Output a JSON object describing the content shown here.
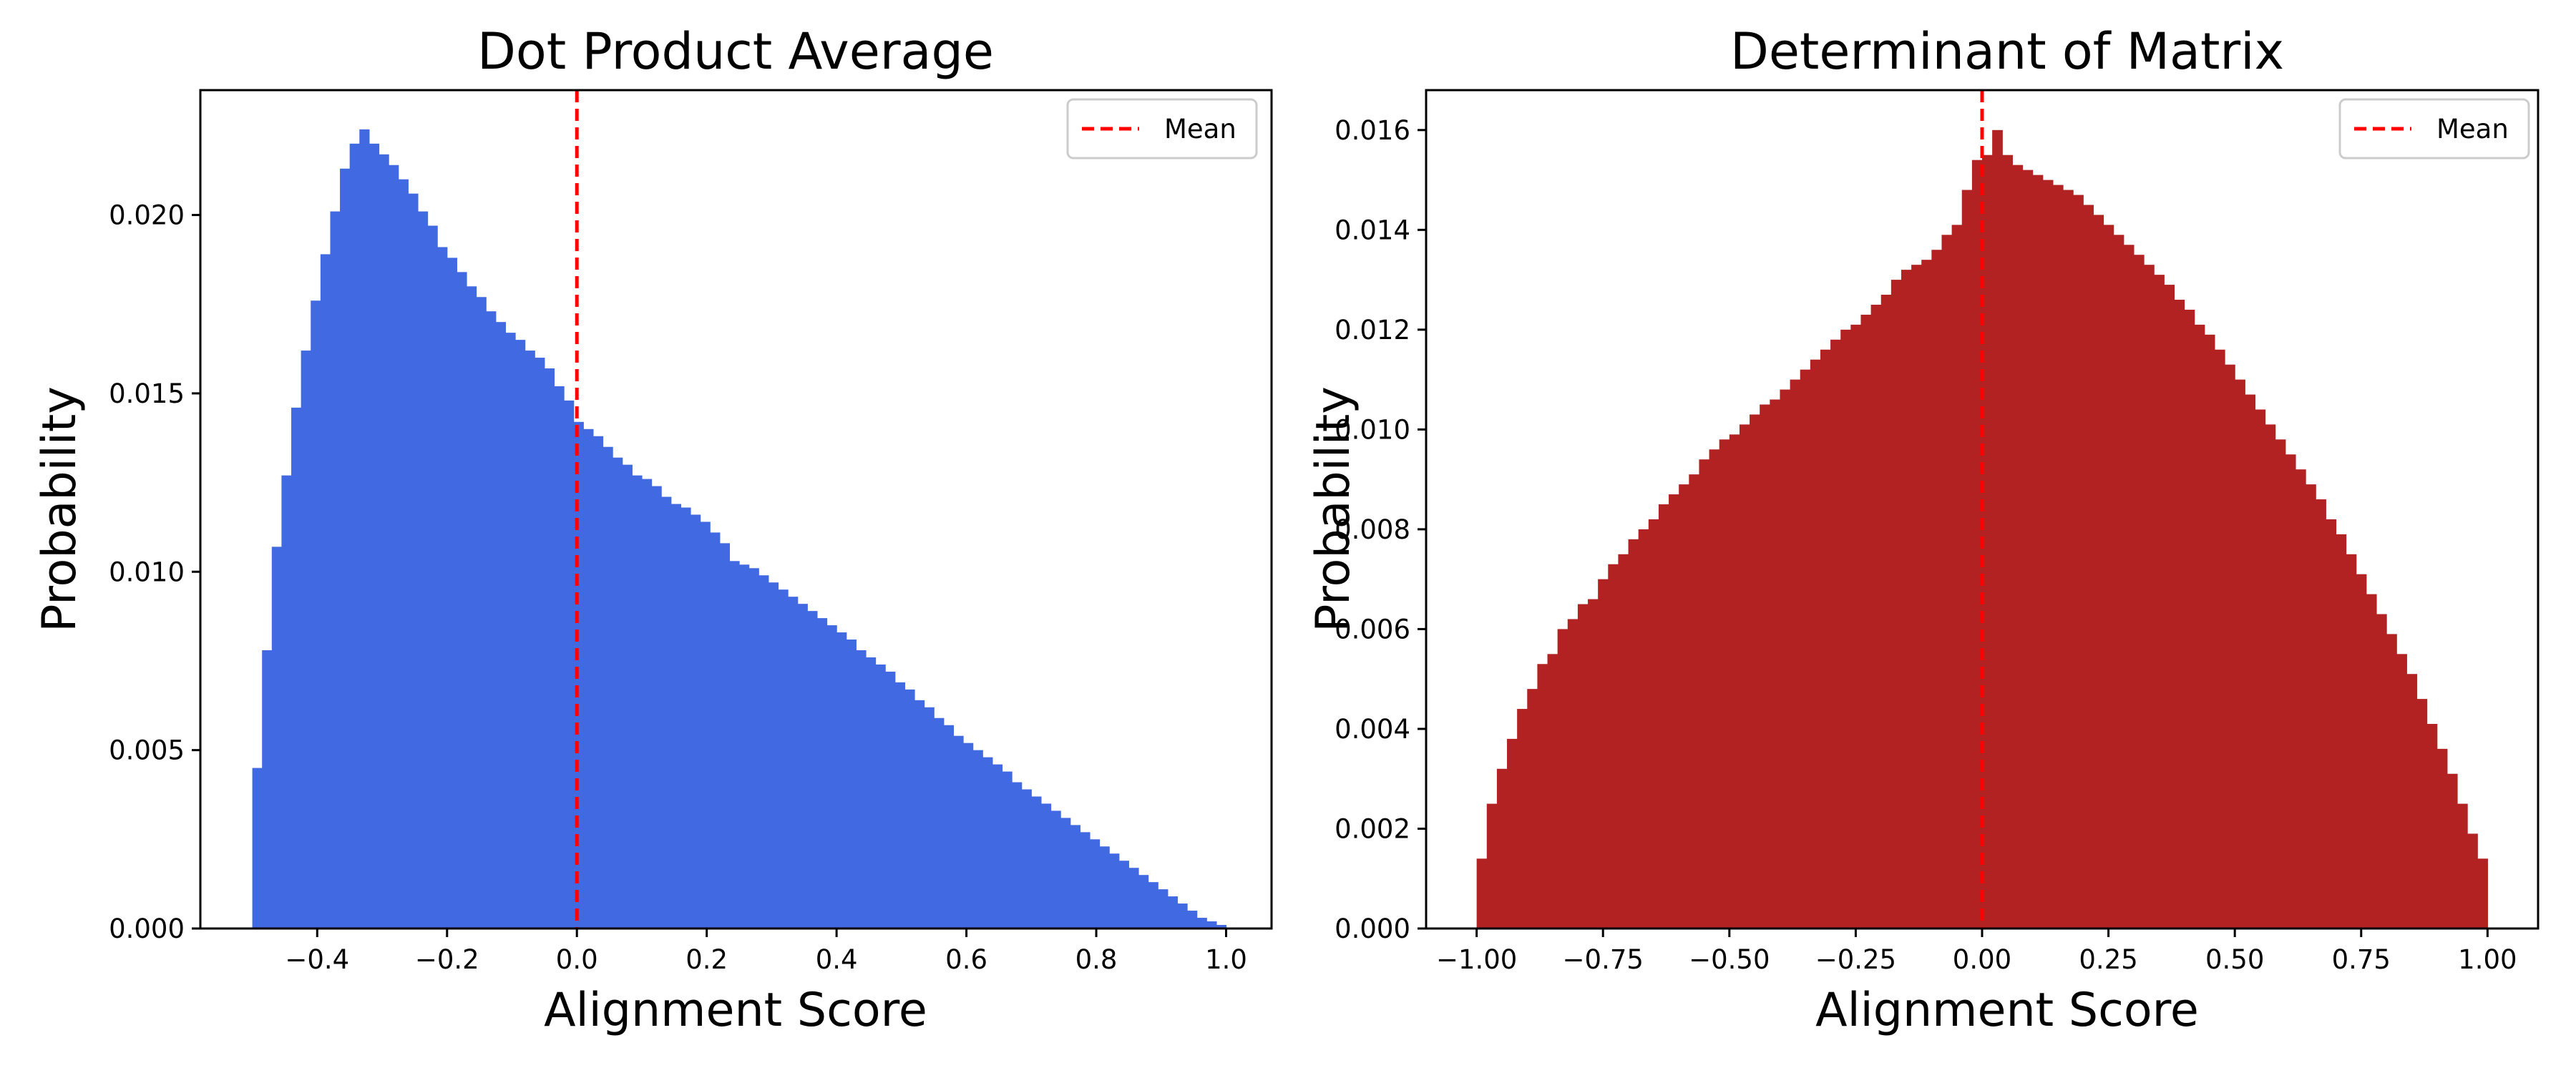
{
  "chart_data": [
    {
      "type": "bar",
      "title": "Dot Product Average",
      "xlabel": "Alignment Score",
      "ylabel": "Probability",
      "xlim": [
        -0.58,
        1.07
      ],
      "ylim": [
        0,
        0.0235
      ],
      "xticks": [
        -0.4,
        -0.2,
        0.0,
        0.2,
        0.4,
        0.6,
        0.8,
        1.0
      ],
      "xtick_labels": [
        "−0.4",
        "−0.2",
        "0.0",
        "0.2",
        "0.4",
        "0.6",
        "0.8",
        "1.0"
      ],
      "yticks": [
        0.0,
        0.005,
        0.01,
        0.015,
        0.02
      ],
      "ytick_labels": [
        "0.000",
        "0.005",
        "0.010",
        "0.015",
        "0.020"
      ],
      "bar_color": "#4169E1",
      "mean_line": {
        "x": 0.0,
        "color": "#FF0000",
        "style": "dashed"
      },
      "legend": {
        "position": "top-right",
        "entries": [
          "Mean"
        ]
      },
      "grid": false,
      "bin_width": 0.015,
      "x": [
        -0.4925,
        -0.4775,
        -0.4625,
        -0.4475,
        -0.4325,
        -0.4175,
        -0.4025,
        -0.3875,
        -0.3725,
        -0.3575,
        -0.3425,
        -0.3275,
        -0.3125,
        -0.2975,
        -0.2825,
        -0.2675,
        -0.2525,
        -0.2375,
        -0.2225,
        -0.2075,
        -0.1925,
        -0.1775,
        -0.1625,
        -0.1475,
        -0.1325,
        -0.1175,
        -0.1025,
        -0.0875,
        -0.0725,
        -0.0575,
        -0.0425,
        -0.0275,
        -0.0125,
        0.0025,
        0.0175,
        0.0325,
        0.0475,
        0.0625,
        0.0775,
        0.0925,
        0.1075,
        0.1225,
        0.1375,
        0.1525,
        0.1675,
        0.1825,
        0.1975,
        0.2125,
        0.2275,
        0.2425,
        0.2575,
        0.2725,
        0.2875,
        0.3025,
        0.3175,
        0.3325,
        0.3475,
        0.3625,
        0.3775,
        0.3925,
        0.4075,
        0.4225,
        0.4375,
        0.4525,
        0.4675,
        0.4825,
        0.4975,
        0.5125,
        0.5275,
        0.5425,
        0.5575,
        0.5725,
        0.5875,
        0.6025,
        0.6175,
        0.6325,
        0.6475,
        0.6625,
        0.6775,
        0.6925,
        0.7075,
        0.7225,
        0.7375,
        0.7525,
        0.7675,
        0.7825,
        0.7975,
        0.8125,
        0.8275,
        0.8425,
        0.8575,
        0.8725,
        0.8875,
        0.9025,
        0.9175,
        0.9325,
        0.9475,
        0.9625,
        0.9775,
        0.9925
      ],
      "values": [
        0.0045,
        0.0078,
        0.0107,
        0.0127,
        0.0146,
        0.0162,
        0.0176,
        0.0189,
        0.0201,
        0.0213,
        0.022,
        0.0224,
        0.022,
        0.0217,
        0.0214,
        0.021,
        0.0206,
        0.0201,
        0.0197,
        0.0191,
        0.0188,
        0.0184,
        0.018,
        0.0177,
        0.0173,
        0.017,
        0.0167,
        0.0165,
        0.0162,
        0.016,
        0.0157,
        0.0152,
        0.0148,
        0.0142,
        0.014,
        0.0138,
        0.0135,
        0.0132,
        0.013,
        0.0127,
        0.0126,
        0.0124,
        0.0121,
        0.0119,
        0.0118,
        0.0116,
        0.0114,
        0.0111,
        0.0108,
        0.0103,
        0.0102,
        0.0101,
        0.0099,
        0.0097,
        0.0095,
        0.0093,
        0.0091,
        0.0089,
        0.0087,
        0.0085,
        0.0083,
        0.0081,
        0.0078,
        0.0076,
        0.0074,
        0.0072,
        0.0069,
        0.0067,
        0.0064,
        0.0062,
        0.0059,
        0.0057,
        0.0054,
        0.0052,
        0.005,
        0.0048,
        0.0046,
        0.0044,
        0.0041,
        0.0039,
        0.0037,
        0.0035,
        0.0033,
        0.0031,
        0.0029,
        0.0027,
        0.0025,
        0.0023,
        0.0021,
        0.0019,
        0.0017,
        0.0015,
        0.0013,
        0.0011,
        0.0009,
        0.0007,
        0.0005,
        0.0003,
        0.0002,
        0.0001
      ]
    },
    {
      "type": "bar",
      "title": "Determinant of Matrix",
      "xlabel": "Alignment Score",
      "ylabel": "Probability",
      "xlim": [
        -1.1,
        1.1
      ],
      "ylim": [
        0,
        0.0168
      ],
      "xticks": [
        -1.0,
        -0.75,
        -0.5,
        -0.25,
        0.0,
        0.25,
        0.5,
        0.75,
        1.0
      ],
      "xtick_labels": [
        "−1.00",
        "−0.75",
        "−0.50",
        "−0.25",
        "0.00",
        "0.25",
        "0.50",
        "0.75",
        "1.00"
      ],
      "yticks": [
        0.0,
        0.002,
        0.004,
        0.006,
        0.008,
        0.01,
        0.012,
        0.014,
        0.016
      ],
      "ytick_labels": [
        "0.000",
        "0.002",
        "0.004",
        "0.006",
        "0.008",
        "0.010",
        "0.012",
        "0.014",
        "0.016"
      ],
      "bar_color": "#B22222",
      "mean_line": {
        "x": 0.0,
        "color": "#FF0000",
        "style": "dashed"
      },
      "legend": {
        "position": "top-right",
        "entries": [
          "Mean"
        ]
      },
      "grid": false,
      "bin_width": 0.02,
      "x": [
        -0.99,
        -0.97,
        -0.95,
        -0.93,
        -0.91,
        -0.89,
        -0.87,
        -0.85,
        -0.83,
        -0.81,
        -0.79,
        -0.77,
        -0.75,
        -0.73,
        -0.71,
        -0.69,
        -0.67,
        -0.65,
        -0.63,
        -0.61,
        -0.59,
        -0.57,
        -0.55,
        -0.53,
        -0.51,
        -0.49,
        -0.47,
        -0.45,
        -0.43,
        -0.41,
        -0.39,
        -0.37,
        -0.35,
        -0.33,
        -0.31,
        -0.29,
        -0.27,
        -0.25,
        -0.23,
        -0.21,
        -0.19,
        -0.17,
        -0.15,
        -0.13,
        -0.11,
        -0.09,
        -0.07,
        -0.05,
        -0.03,
        -0.01,
        0.01,
        0.03,
        0.05,
        0.07,
        0.09,
        0.11,
        0.13,
        0.15,
        0.17,
        0.19,
        0.21,
        0.23,
        0.25,
        0.27,
        0.29,
        0.31,
        0.33,
        0.35,
        0.37,
        0.39,
        0.41,
        0.43,
        0.45,
        0.47,
        0.49,
        0.51,
        0.53,
        0.55,
        0.57,
        0.59,
        0.61,
        0.63,
        0.65,
        0.67,
        0.69,
        0.71,
        0.73,
        0.75,
        0.77,
        0.79,
        0.81,
        0.83,
        0.85,
        0.87,
        0.89,
        0.91,
        0.93,
        0.95,
        0.97,
        0.99
      ],
      "values": [
        0.0014,
        0.0025,
        0.0032,
        0.0038,
        0.0044,
        0.0048,
        0.0053,
        0.0055,
        0.006,
        0.0062,
        0.0065,
        0.0066,
        0.007,
        0.0073,
        0.0075,
        0.0078,
        0.008,
        0.0082,
        0.0085,
        0.0087,
        0.0089,
        0.0091,
        0.0094,
        0.0096,
        0.0098,
        0.0099,
        0.0101,
        0.0103,
        0.0105,
        0.0106,
        0.0108,
        0.011,
        0.0112,
        0.0114,
        0.0116,
        0.0118,
        0.012,
        0.0121,
        0.0123,
        0.0125,
        0.0127,
        0.013,
        0.0132,
        0.0133,
        0.0134,
        0.0136,
        0.0139,
        0.0141,
        0.0148,
        0.0154,
        0.0155,
        0.016,
        0.0155,
        0.0153,
        0.0152,
        0.0151,
        0.015,
        0.0149,
        0.0148,
        0.0147,
        0.0145,
        0.0143,
        0.0141,
        0.0139,
        0.0137,
        0.0135,
        0.0133,
        0.0131,
        0.0129,
        0.0126,
        0.0124,
        0.0121,
        0.0119,
        0.0116,
        0.0113,
        0.011,
        0.0107,
        0.0104,
        0.0101,
        0.0098,
        0.0095,
        0.0092,
        0.0089,
        0.0086,
        0.0082,
        0.0079,
        0.0075,
        0.0071,
        0.0067,
        0.0063,
        0.0059,
        0.0055,
        0.0051,
        0.0046,
        0.0041,
        0.0036,
        0.0031,
        0.0025,
        0.0019,
        0.0014
      ]
    }
  ],
  "legend_label": "Mean"
}
